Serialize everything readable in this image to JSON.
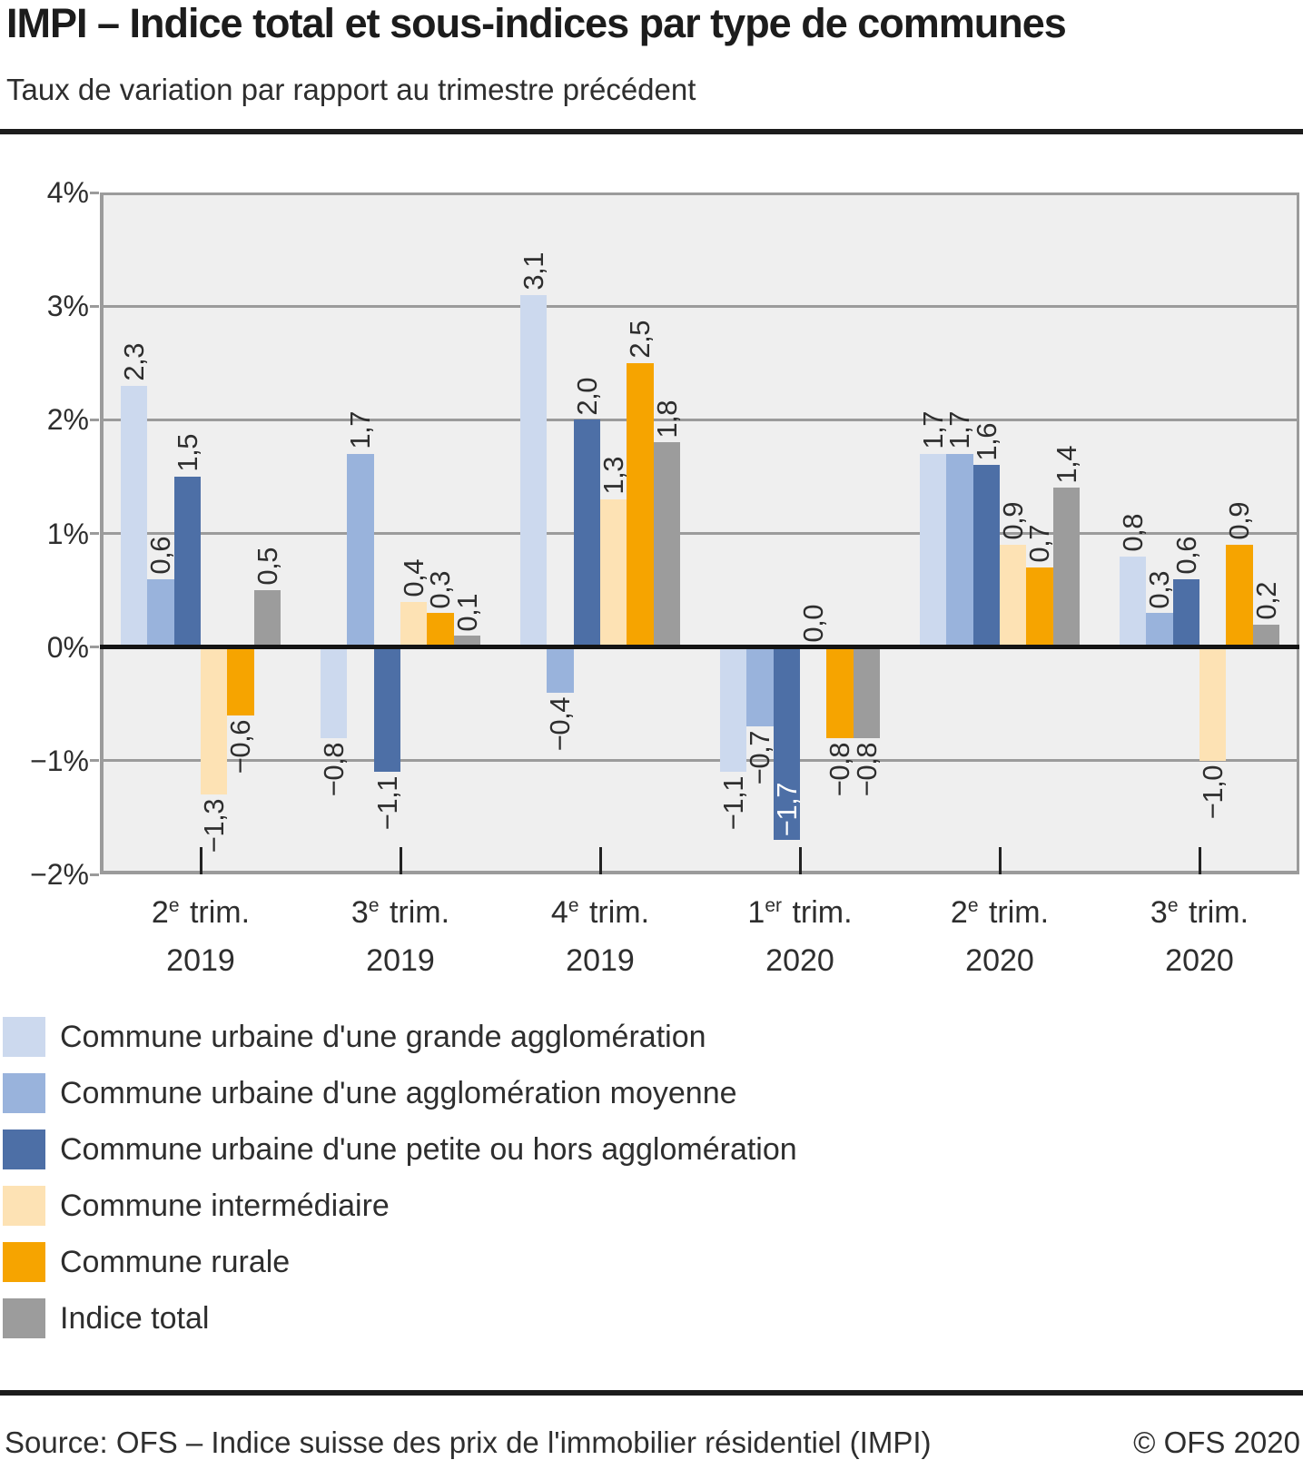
{
  "header": {
    "title": "IMPI – Indice total et sous-indices par type de communes",
    "subtitle": "Taux de variation par rapport au trimestre précédent"
  },
  "chart_data": {
    "type": "bar",
    "title": "IMPI – Indice total et sous-indices par type de communes",
    "subtitle": "Taux de variation par rapport au trimestre précédent",
    "unit": "%",
    "grid": true,
    "legend_position": "bottom-left",
    "axis": {
      "ymin": -2,
      "ymax": 4,
      "step": 1,
      "tick_labels": [
        "4%",
        "3%",
        "2%",
        "1%",
        "0%",
        "−1%",
        "−2%"
      ]
    },
    "categories": [
      {
        "label": "2e trim. 2019",
        "num": "2",
        "sup": "e",
        "word": "trim.",
        "year": "2019"
      },
      {
        "label": "3e trim. 2019",
        "num": "3",
        "sup": "e",
        "word": "trim.",
        "year": "2019"
      },
      {
        "label": "4e trim. 2019",
        "num": "4",
        "sup": "e",
        "word": "trim.",
        "year": "2019"
      },
      {
        "label": "1er trim. 2020",
        "num": "1",
        "sup": "er",
        "word": "trim.",
        "year": "2020"
      },
      {
        "label": "2e trim. 2020",
        "num": "2",
        "sup": "e",
        "word": "trim.",
        "year": "2020"
      },
      {
        "label": "3e trim. 2020",
        "num": "3",
        "sup": "e",
        "word": "trim.",
        "year": "2020"
      }
    ],
    "series": [
      {
        "name": "Commune urbaine d'une grande agglomération",
        "color": "#ccd9ee",
        "values": [
          2.3,
          -0.8,
          3.1,
          -1.1,
          1.7,
          0.8
        ]
      },
      {
        "name": "Commune urbaine d'une agglomération moyenne",
        "color": "#99b3dc",
        "values": [
          0.6,
          1.7,
          -0.4,
          -0.7,
          1.7,
          0.3
        ]
      },
      {
        "name": "Commune urbaine d'une petite ou hors agglomération",
        "color": "#4d6fa6",
        "values": [
          1.5,
          -1.1,
          2.0,
          -1.7,
          1.6,
          0.6
        ]
      },
      {
        "name": "Commune intermédiaire",
        "color": "#fde2b4",
        "values": [
          -1.3,
          0.4,
          1.3,
          0.0,
          0.9,
          -1.0
        ]
      },
      {
        "name": "Commune rurale",
        "color": "#f6a400",
        "values": [
          -0.6,
          0.3,
          2.5,
          -0.8,
          0.7,
          0.9
        ]
      },
      {
        "name": "Indice total",
        "color": "#9c9c9c",
        "values": [
          0.5,
          0.1,
          1.8,
          -0.8,
          1.4,
          0.2
        ]
      }
    ],
    "special_label": {
      "series_index": 2,
      "category_index": 3,
      "inside": true,
      "color": "#ffffff"
    },
    "colors": {
      "plot_background": "#efefef",
      "gridline": "#9b9b9b",
      "zero_line": "#141414",
      "value_label": "#2e2e2e"
    }
  },
  "footer": {
    "source": "Source: OFS – Indice suisse des prix de l'immobilier résidentiel (IMPI)",
    "copyright": "© OFS 2020"
  }
}
